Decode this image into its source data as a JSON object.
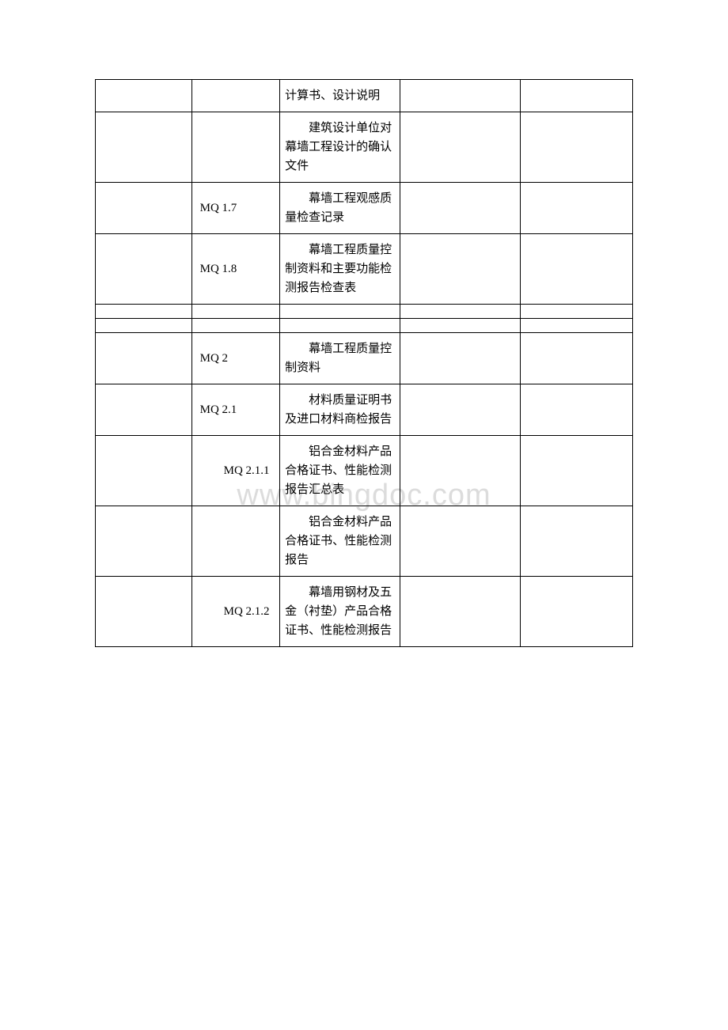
{
  "watermark": "www.bingdoc.com",
  "table": {
    "columns": {
      "col1_width": 120,
      "col2_width": 110,
      "col3_width": 150,
      "col4_width": 150,
      "col5_width": 140
    },
    "border_color": "#000000",
    "background_color": "#ffffff",
    "text_color": "#000000",
    "font_size": 15,
    "rows": [
      {
        "code": "",
        "desc": "计算书、设计说明"
      },
      {
        "code": "",
        "desc": "建筑设计单位对幕墙工程设计的确认文件"
      },
      {
        "code": "MQ 1.7",
        "desc": "幕墙工程观感质量检查记录"
      },
      {
        "code": "MQ 1.8",
        "desc": "幕墙工程质量控制资料和主要功能检测报告检查表"
      },
      {
        "spacer": true
      },
      {
        "spacer": true
      },
      {
        "code": "MQ 2",
        "desc": "幕墙工程质量控制资料"
      },
      {
        "code": "MQ 2.1",
        "desc": "材料质量证明书及进口材料商检报告"
      },
      {
        "code": "MQ 2.1.1",
        "code_wrap": true,
        "desc": "铝合金材料产品合格证书、性能检测报告汇总表"
      },
      {
        "code": "",
        "desc": "铝合金材料产品合格证书、性能检测报告"
      },
      {
        "code": "MQ 2.1.2",
        "code_wrap": true,
        "desc": "幕墙用钢材及五金（衬垫）产品合格证书、性能检测报告"
      }
    ]
  },
  "watermark_color": "#dcdcdc",
  "watermark_fontsize": 38
}
